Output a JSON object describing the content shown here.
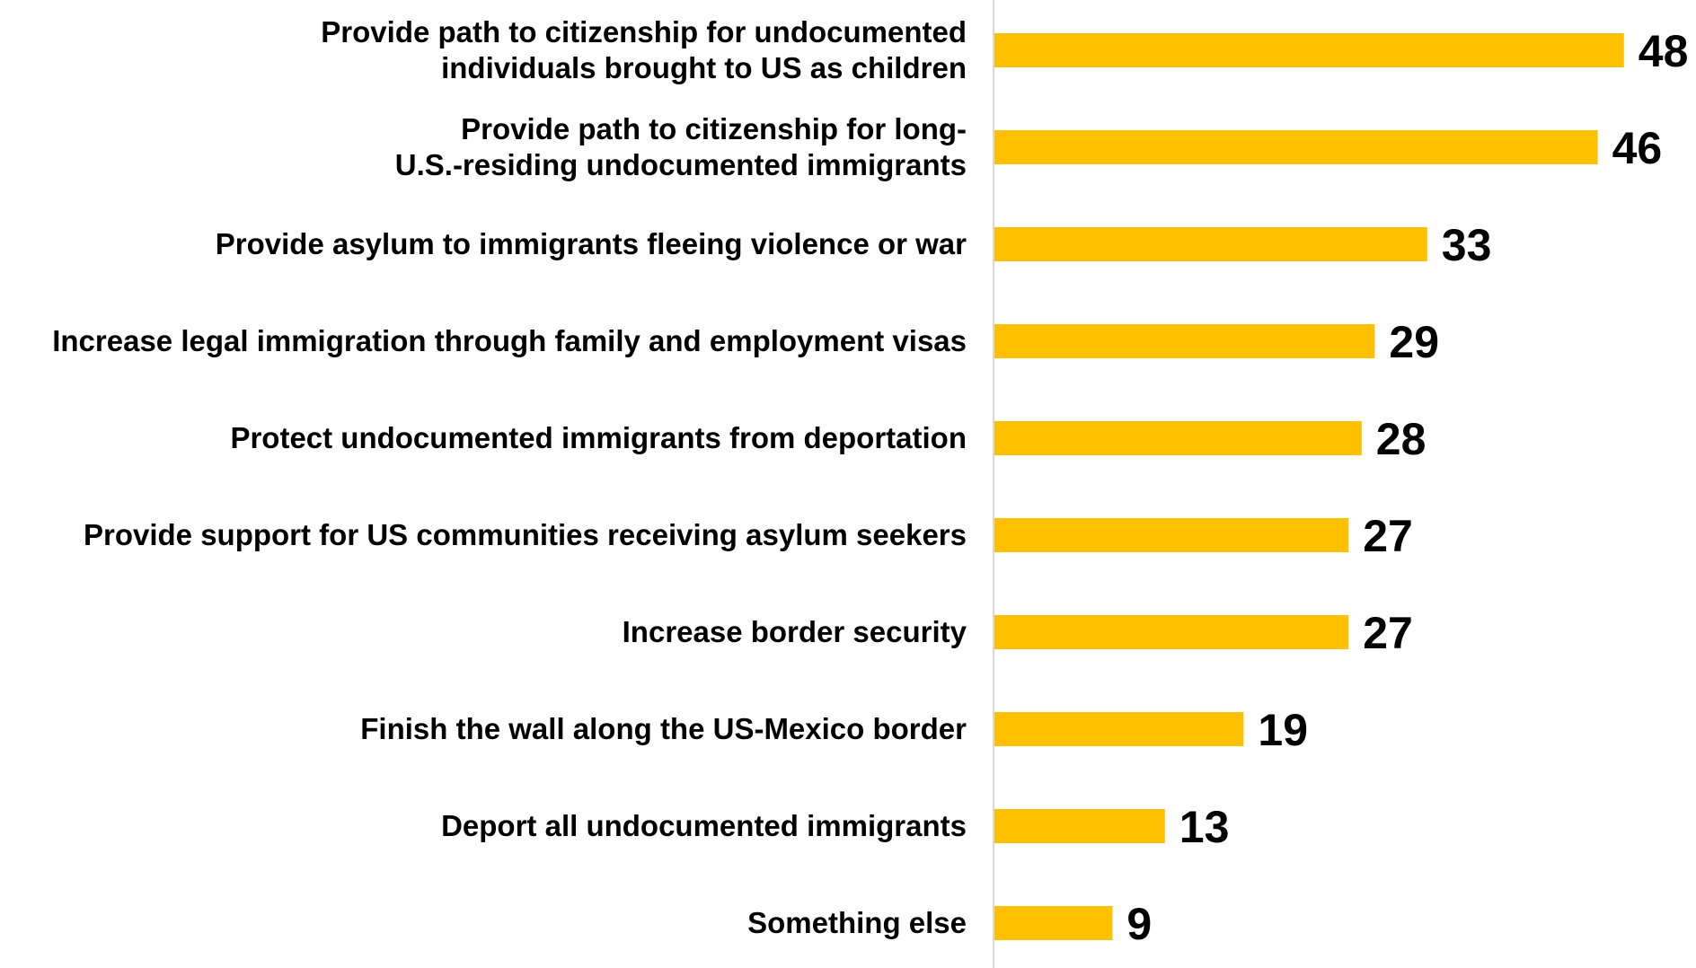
{
  "chart_data": {
    "type": "bar",
    "orientation": "horizontal",
    "categories": [
      [
        "Provide path to citizenship for undocumented",
        "individuals brought to US as children"
      ],
      [
        "Provide path to citizenship for long-",
        "U.S.-residing undocumented immigrants"
      ],
      [
        "Provide asylum to immigrants fleeing violence or war"
      ],
      [
        "Increase legal immigration through family and employment visas"
      ],
      [
        "Protect undocumented immigrants from deportation"
      ],
      [
        "Provide support for US communities receiving asylum seekers"
      ],
      [
        "Increase border security"
      ],
      [
        "Finish the wall along the US-Mexico border"
      ],
      [
        "Deport all undocumented immigrants"
      ],
      [
        "Something else"
      ]
    ],
    "values": [
      48,
      46,
      33,
      29,
      28,
      27,
      27,
      19,
      13,
      9
    ],
    "value_labels": [
      "48",
      "46",
      "33",
      "29",
      "28",
      "27",
      "27",
      "19",
      "13",
      "9"
    ],
    "bar_color": "#FFC000",
    "axis_line_color": "#D9D9D9",
    "title": "",
    "xlabel": "",
    "ylabel": "",
    "grid": false,
    "legend": "none"
  }
}
